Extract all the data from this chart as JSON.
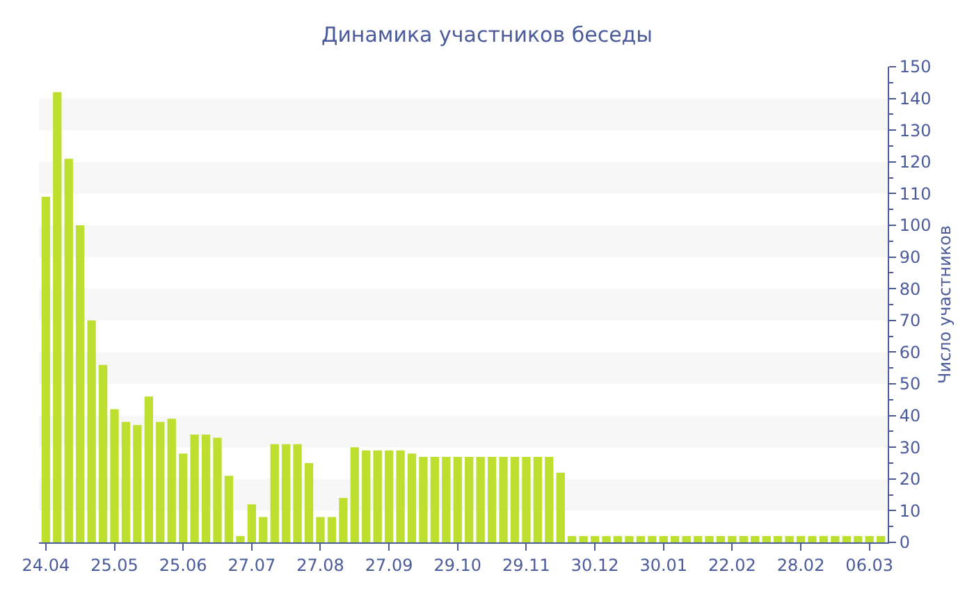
{
  "chart_data": {
    "type": "bar",
    "title": "Динамика участников беседы",
    "ylabel": "Число участников",
    "categories": [
      "24.04",
      null,
      null,
      null,
      null,
      null,
      "25.05",
      null,
      null,
      null,
      null,
      null,
      "25.06",
      null,
      null,
      null,
      null,
      null,
      "27.07",
      null,
      null,
      null,
      null,
      null,
      "27.08",
      null,
      null,
      null,
      null,
      null,
      "27.09",
      null,
      null,
      null,
      null,
      null,
      "29.10",
      null,
      null,
      null,
      null,
      null,
      "29.11",
      null,
      null,
      null,
      null,
      null,
      "30.12",
      null,
      null,
      null,
      null,
      null,
      "30.01",
      null,
      null,
      null,
      null,
      null,
      "22.02",
      null,
      null,
      null,
      null,
      null,
      "28.02",
      null,
      null,
      null,
      null,
      null,
      "06.03",
      null
    ],
    "values": [
      109,
      142,
      121,
      100,
      70,
      56,
      42,
      38,
      37,
      46,
      38,
      39,
      28,
      34,
      34,
      33,
      21,
      2,
      12,
      8,
      31,
      31,
      31,
      25,
      8,
      8,
      14,
      30,
      29,
      29,
      29,
      29,
      28,
      27,
      27,
      27,
      27,
      27,
      27,
      27,
      27,
      27,
      27,
      27,
      27,
      22,
      2,
      2,
      2,
      2,
      2,
      2,
      2,
      2,
      2,
      2,
      2,
      2,
      2,
      2,
      2,
      2,
      2,
      2,
      2,
      2,
      2,
      2,
      2,
      2,
      2,
      2,
      2,
      2
    ],
    "color": "#bde030",
    "ylim": [
      0,
      150
    ],
    "yticks": [
      0,
      {
        "value": 5,
        "label": null
      },
      10,
      {
        "value": 15,
        "label": null
      },
      20,
      {
        "value": 25,
        "label": null
      },
      30,
      {
        "value": 35,
        "label": null
      },
      40,
      {
        "value": 45,
        "label": null
      },
      50,
      {
        "value": 55,
        "label": null
      },
      60,
      {
        "value": 65,
        "label": null
      },
      70,
      {
        "value": 75,
        "label": null
      },
      80,
      {
        "value": 85,
        "label": null
      },
      90,
      {
        "value": 95,
        "label": null
      },
      100,
      {
        "value": 105,
        "label": null
      },
      110,
      {
        "value": 115,
        "label": null
      },
      120,
      {
        "value": 125,
        "label": null
      },
      130,
      {
        "value": 135,
        "label": null
      },
      140,
      {
        "value": 145,
        "label": null
      },
      150
    ],
    "bands": [
      {
        "axis": "y",
        "from": 10,
        "to": 20,
        "color": "#f7f7f7"
      },
      {
        "axis": "y",
        "from": 30,
        "to": 40,
        "color": "#f7f7f7"
      },
      {
        "axis": "y",
        "from": 50,
        "to": 60,
        "color": "#f7f7f7"
      },
      {
        "axis": "y",
        "from": 70,
        "to": 80,
        "color": "#f7f7f7"
      },
      {
        "axis": "y",
        "from": 90,
        "to": 100,
        "color": "#f7f7f7"
      },
      {
        "axis": "y",
        "from": 110,
        "to": 120,
        "color": "#f7f7f7"
      },
      {
        "axis": "y",
        "from": 130,
        "to": 140,
        "color": "#f7f7f7"
      }
    ],
    "grid": false
  }
}
